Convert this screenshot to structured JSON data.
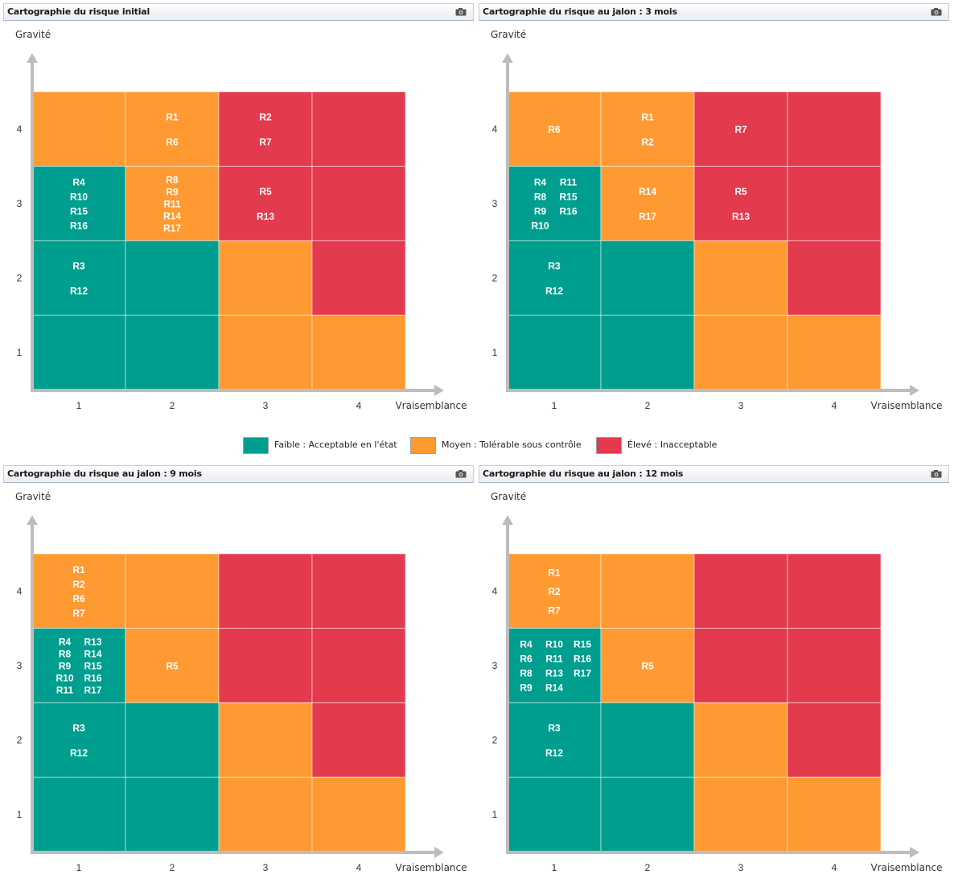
{
  "axes": {
    "ylabel": "Gravité",
    "xlabel": "Vraisemblance",
    "x_ticks": [
      "1",
      "2",
      "3",
      "4"
    ],
    "y_ticks": [
      "1",
      "2",
      "3",
      "4"
    ]
  },
  "colors": {
    "faible": "#009E8E",
    "moyen": "#FF9A33",
    "eleve": "#E43A4E",
    "axis": "#bdbdbd"
  },
  "level_grid_note_rows_from_top": "gravité 4 to 1, columns vraisemblance 1 to 4",
  "legend": [
    {
      "key": "faible",
      "label": "Faible : Acceptable en l'état"
    },
    {
      "key": "moyen",
      "label": "Moyen : Tolérable sous contrôle"
    },
    {
      "key": "eleve",
      "label": "Élevé : Inacceptable"
    }
  ],
  "chart_data": [
    {
      "type": "heatmap",
      "title": "Cartographie du risque initial",
      "xlabel": "Vraisemblance",
      "ylabel": "Gravité",
      "levels": [
        [
          "moyen",
          "moyen",
          "eleve",
          "eleve"
        ],
        [
          "faible",
          "moyen",
          "eleve",
          "eleve"
        ],
        [
          "faible",
          "faible",
          "moyen",
          "eleve"
        ],
        [
          "faible",
          "faible",
          "moyen",
          "moyen"
        ]
      ],
      "cells": [
        {
          "gravite": 4,
          "vraisemblance": 2,
          "rows": [
            [
              "R1"
            ],
            [
              "R6"
            ]
          ]
        },
        {
          "gravite": 4,
          "vraisemblance": 3,
          "rows": [
            [
              "R2"
            ],
            [
              "R7"
            ]
          ]
        },
        {
          "gravite": 3,
          "vraisemblance": 1,
          "rows": [
            [
              "R4"
            ],
            [
              "R10"
            ],
            [
              "R15"
            ],
            [
              "R16"
            ]
          ]
        },
        {
          "gravite": 3,
          "vraisemblance": 2,
          "rows": [
            [
              "R8"
            ],
            [
              "R9"
            ],
            [
              "R11"
            ],
            [
              "R14"
            ],
            [
              "R17"
            ]
          ]
        },
        {
          "gravite": 3,
          "vraisemblance": 3,
          "rows": [
            [
              "R5"
            ],
            [
              "R13"
            ]
          ]
        },
        {
          "gravite": 2,
          "vraisemblance": 1,
          "rows": [
            [
              "R3"
            ],
            [
              "R12"
            ]
          ]
        }
      ]
    },
    {
      "type": "heatmap",
      "title": "Cartographie du risque au jalon : 3 mois",
      "xlabel": "Vraisemblance",
      "ylabel": "Gravité",
      "levels": [
        [
          "moyen",
          "moyen",
          "eleve",
          "eleve"
        ],
        [
          "faible",
          "moyen",
          "eleve",
          "eleve"
        ],
        [
          "faible",
          "faible",
          "moyen",
          "eleve"
        ],
        [
          "faible",
          "faible",
          "moyen",
          "moyen"
        ]
      ],
      "cells": [
        {
          "gravite": 4,
          "vraisemblance": 1,
          "rows": [
            [
              "R6"
            ]
          ]
        },
        {
          "gravite": 4,
          "vraisemblance": 2,
          "rows": [
            [
              "R1"
            ],
            [
              "R2"
            ]
          ]
        },
        {
          "gravite": 4,
          "vraisemblance": 3,
          "rows": [
            [
              "R7"
            ]
          ]
        },
        {
          "gravite": 3,
          "vraisemblance": 1,
          "rows": [
            [
              "R4",
              "R11"
            ],
            [
              "R8",
              "R15"
            ],
            [
              "R9",
              "R16"
            ],
            [
              "R10"
            ]
          ]
        },
        {
          "gravite": 3,
          "vraisemblance": 2,
          "rows": [
            [
              "R14"
            ],
            [
              "R17"
            ]
          ]
        },
        {
          "gravite": 3,
          "vraisemblance": 3,
          "rows": [
            [
              "R5"
            ],
            [
              "R13"
            ]
          ]
        },
        {
          "gravite": 2,
          "vraisemblance": 1,
          "rows": [
            [
              "R3"
            ],
            [
              "R12"
            ]
          ]
        }
      ]
    },
    {
      "type": "heatmap",
      "title": "Cartographie du risque au jalon : 9 mois",
      "xlabel": "Vraisemblance",
      "ylabel": "Gravité",
      "levels": [
        [
          "moyen",
          "moyen",
          "eleve",
          "eleve"
        ],
        [
          "faible",
          "moyen",
          "eleve",
          "eleve"
        ],
        [
          "faible",
          "faible",
          "moyen",
          "eleve"
        ],
        [
          "faible",
          "faible",
          "moyen",
          "moyen"
        ]
      ],
      "cells": [
        {
          "gravite": 4,
          "vraisemblance": 1,
          "rows": [
            [
              "R1"
            ],
            [
              "R2"
            ],
            [
              "R6"
            ],
            [
              "R7"
            ]
          ]
        },
        {
          "gravite": 3,
          "vraisemblance": 1,
          "rows": [
            [
              "R4",
              "R13"
            ],
            [
              "R8",
              "R14"
            ],
            [
              "R9",
              "R15"
            ],
            [
              "R10",
              "R16"
            ],
            [
              "R11",
              "R17"
            ]
          ]
        },
        {
          "gravite": 3,
          "vraisemblance": 2,
          "rows": [
            [
              "R5"
            ]
          ]
        },
        {
          "gravite": 2,
          "vraisemblance": 1,
          "rows": [
            [
              "R3"
            ],
            [
              "R12"
            ]
          ]
        }
      ]
    },
    {
      "type": "heatmap",
      "title": "Cartographie du risque au jalon : 12 mois",
      "xlabel": "Vraisemblance",
      "ylabel": "Gravité",
      "levels": [
        [
          "moyen",
          "moyen",
          "eleve",
          "eleve"
        ],
        [
          "faible",
          "moyen",
          "eleve",
          "eleve"
        ],
        [
          "faible",
          "faible",
          "moyen",
          "eleve"
        ],
        [
          "faible",
          "faible",
          "moyen",
          "moyen"
        ]
      ],
      "cells": [
        {
          "gravite": 4,
          "vraisemblance": 1,
          "rows": [
            [
              "R1"
            ],
            [
              "R2"
            ],
            [
              "R7"
            ]
          ]
        },
        {
          "gravite": 3,
          "vraisemblance": 1,
          "rows": [
            [
              "R4",
              "R10",
              "R15"
            ],
            [
              "R6",
              "R11",
              "R16"
            ],
            [
              "R8",
              "R13",
              "R17"
            ],
            [
              "R9",
              "R14"
            ]
          ]
        },
        {
          "gravite": 3,
          "vraisemblance": 2,
          "rows": [
            [
              "R5"
            ]
          ]
        },
        {
          "gravite": 2,
          "vraisemblance": 1,
          "rows": [
            [
              "R3"
            ],
            [
              "R12"
            ]
          ]
        }
      ]
    }
  ]
}
